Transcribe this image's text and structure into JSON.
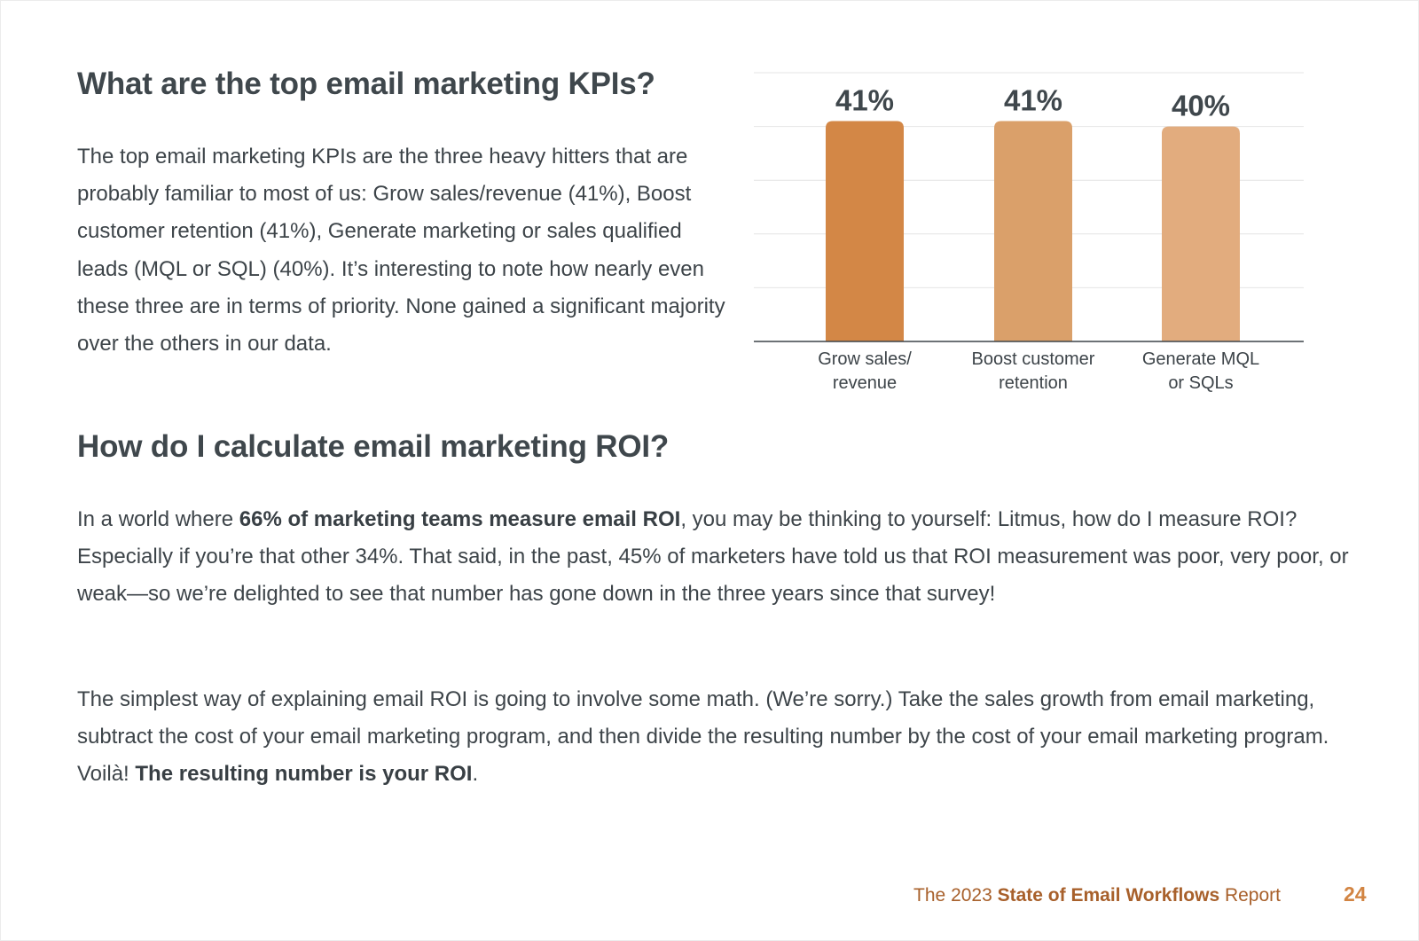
{
  "sections": {
    "kpis": {
      "heading": "What are the top email marketing KPIs?",
      "paragraph": "The top email marketing KPIs are the three heavy hitters that are probably familiar to most of us: Grow sales/revenue (41%), Boost customer retention (41%), Generate marketing or sales qualified leads (MQL or SQL) (40%). It’s interesting to note how nearly even these three are in terms of priority. None gained a significant majority over the others in our data."
    },
    "roi": {
      "heading": "How do I calculate email marketing ROI?",
      "p1_before": "In a world where ",
      "p1_bold": "66% of marketing teams measure email ROI",
      "p1_after": ", you may be thinking to yourself: Litmus, how do I measure ROI? Especially if you’re that other 34%. That said, in the past, 45% of marketers have told us that ROI measurement was poor, very poor, or weak—so we’re delighted to see that number has gone down in the three years since that survey!",
      "p2_before": "The simplest way of explaining email ROI is going to involve some math. (We’re sorry.) Take the sales growth from email marketing, subtract the cost of your email marketing program, and then divide the resulting number by the cost of your email marketing program. Voilà! ",
      "p2_bold": "The resulting number is your ROI",
      "p2_after": "."
    }
  },
  "chart_data": {
    "type": "bar",
    "categories": [
      "Grow sales/ revenue",
      "Boost customer retention",
      "Generate MQL or SQLs"
    ],
    "category_lines": [
      [
        "Grow sales/",
        "revenue"
      ],
      [
        "Boost customer",
        "retention"
      ],
      [
        "Generate MQL",
        "or SQLs"
      ]
    ],
    "values": [
      41,
      41,
      40
    ],
    "value_labels": [
      "41%",
      "41%",
      "40%"
    ],
    "bar_colors": [
      "#d38746",
      "#daa06a",
      "#e2ac7e"
    ],
    "ylim": [
      0,
      50
    ],
    "grid": true,
    "title": "",
    "xlabel": "",
    "ylabel": ""
  },
  "footer": {
    "prefix": "The 2023 ",
    "bold": "State of Email Workflows",
    "suffix": " Report",
    "page_number": "24"
  },
  "colors": {
    "text": "#3d4449",
    "accent": "#d28442",
    "footer": "#a8602b"
  }
}
